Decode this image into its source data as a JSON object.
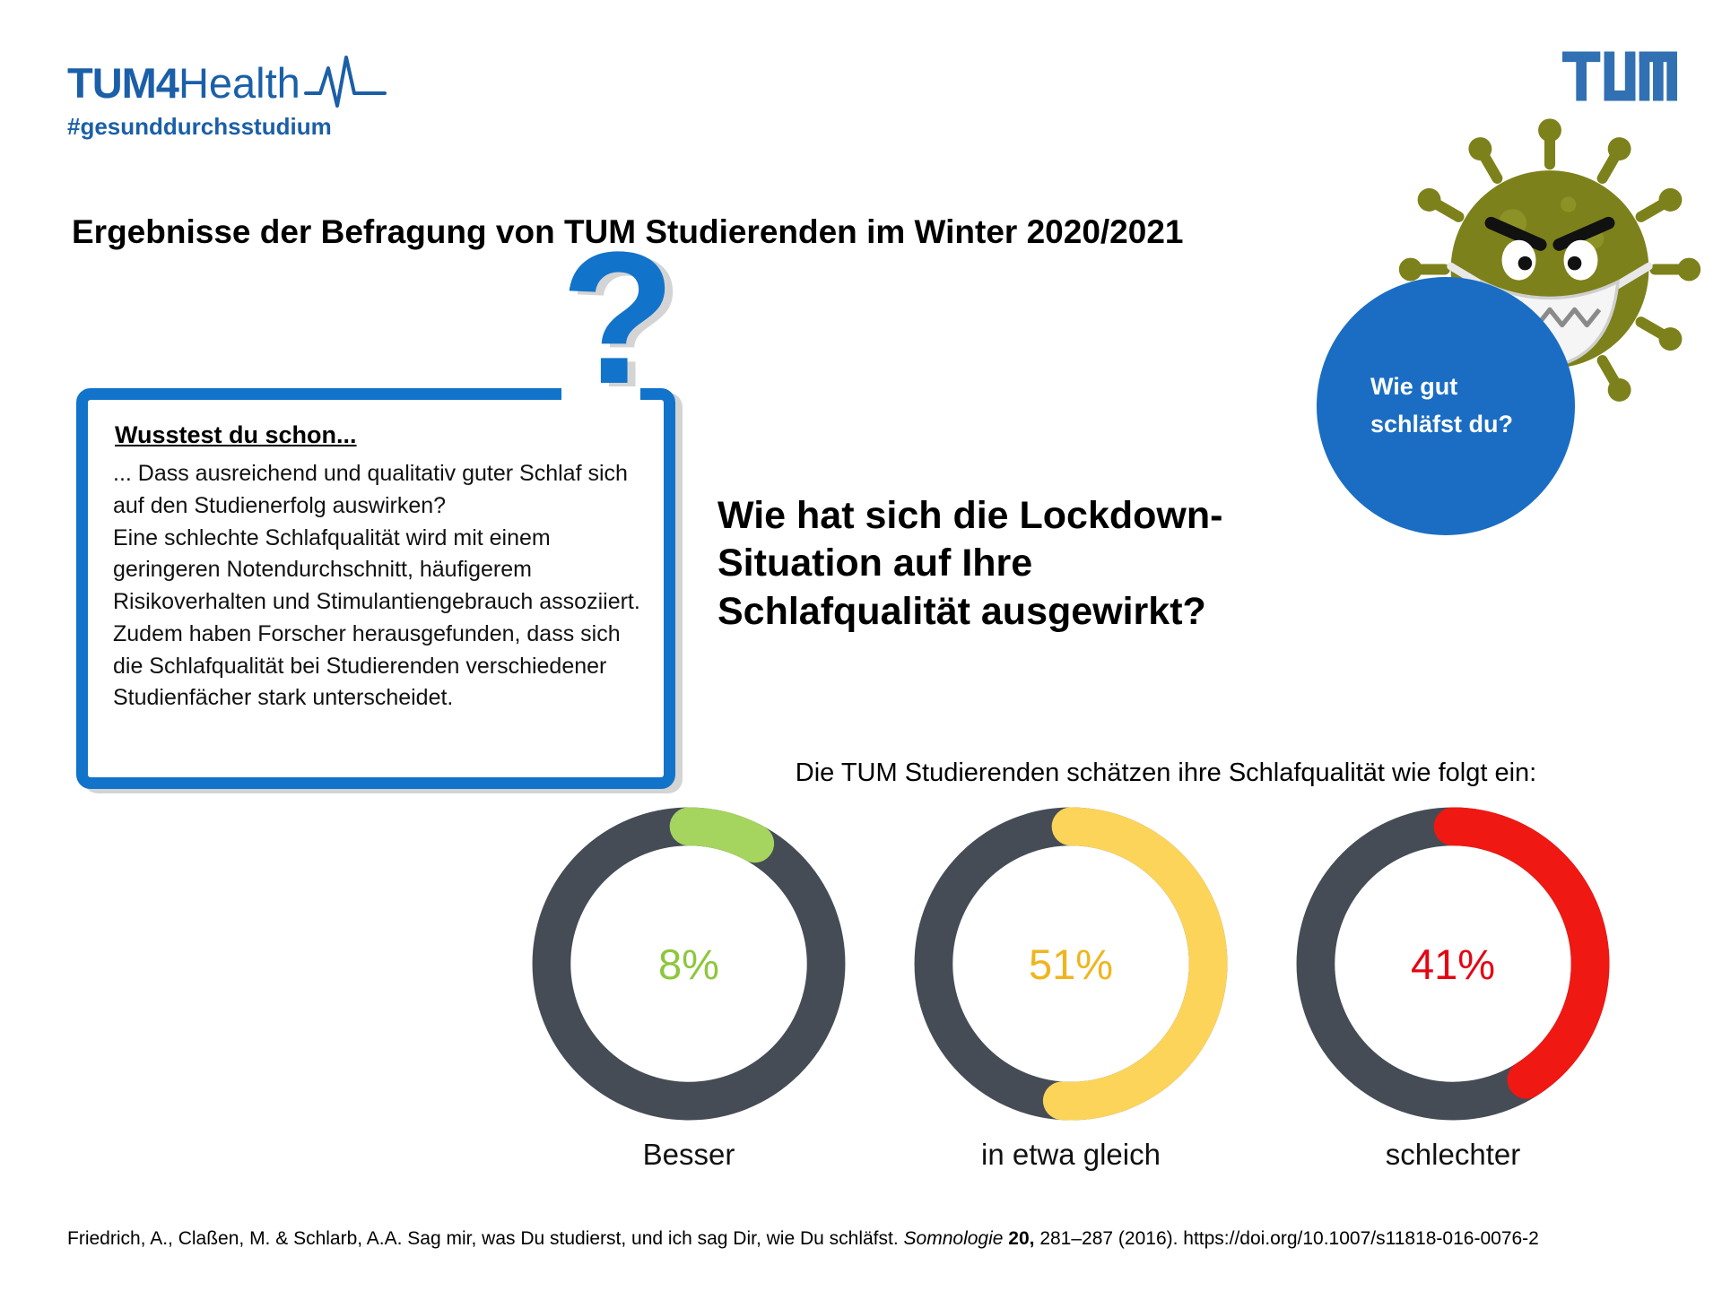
{
  "header": {
    "brand_bold": "TUM4",
    "brand_light": "Health",
    "hashtag": "#gesunddurchsstudium"
  },
  "title": "Ergebnisse der Befragung von TUM Studierenden im Winter 2020/2021",
  "fact_box": {
    "question_mark": "?",
    "heading": "Wusstest du schon...",
    "paragraphs": [
      "... Dass ausreichend und qualitativ guter Schlaf sich auf den Studienerfolg auswirken?",
      "Eine schlechte Schlafqualität wird mit einem geringeren Notendurchschnitt, häufigerem Risikoverhalten und Stimulantiengebrauch assoziiert.",
      "Zudem haben Forscher herausgefunden, dass sich die Schlafqualität bei Studierenden verschiedener Studienfächer stark unterscheidet."
    ]
  },
  "bubble": {
    "text": "Wie gut\nschläfst du?"
  },
  "main_question": "Wie hat sich die Lockdown-\nSituation auf Ihre\nSchlafqualität ausgewirkt?",
  "chart_data": {
    "type": "pie",
    "variant": "donut",
    "title": "Die TUM Studierenden schätzen ihre Schlafqualität wie folgt ein:",
    "categories": [
      "Besser",
      "in etwa gleich",
      "schlechter"
    ],
    "values": [
      8,
      51,
      41
    ],
    "unit": "%",
    "segment_colors": [
      "#a5d45f",
      "#fdd45a",
      "#ef1812"
    ],
    "label_colors": [
      "#8ec63e",
      "#f0b51e",
      "#e30613"
    ],
    "track_color": "#454c55",
    "start_angle_deg": 0,
    "direction": "clockwise",
    "legend_position": "below"
  },
  "citation": {
    "authors_text": "Friedrich, A., Claßen, M. & Schlarb, A.A. Sag mir, was Du studierst, und ich sag Dir, wie Du schläfst. ",
    "journal": "Somnologie ",
    "volume": "20,",
    "rest": " 281–287 (2016). https://doi.org/10.1007/s11818-016-0076-2"
  },
  "colors": {
    "accent_blue": "#1273cb",
    "brand_blue": "#1b5fa8",
    "tum_logo_blue": "#3070b3",
    "bubble_blue": "#1a6dc3",
    "virus_olive": "#7d811b"
  }
}
